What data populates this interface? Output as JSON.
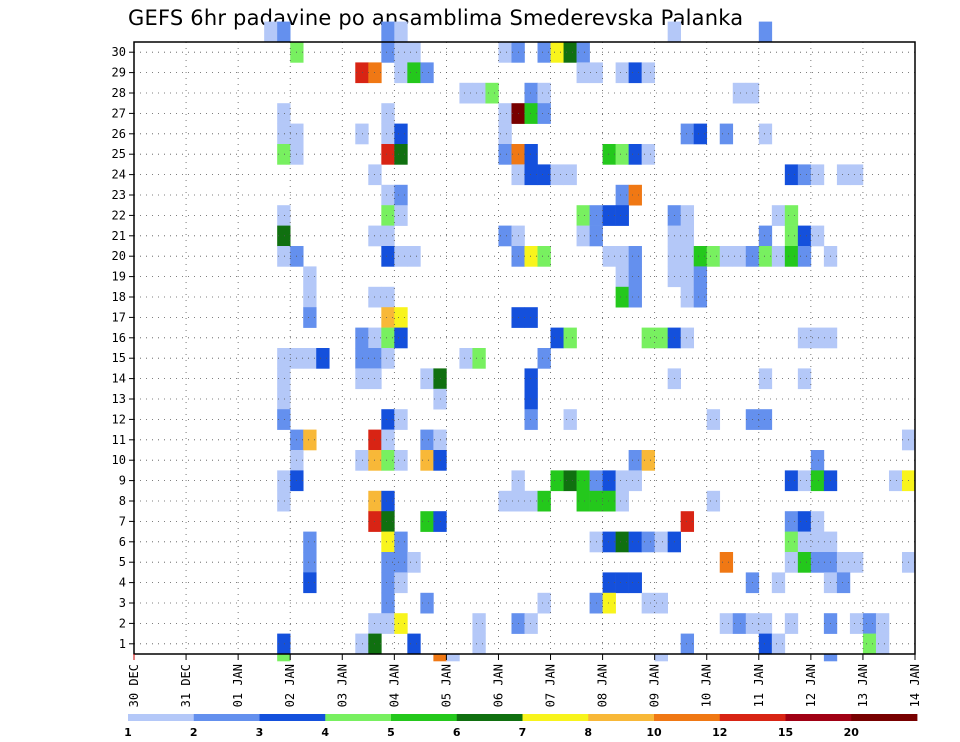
{
  "chart_data": {
    "type": "heatmap",
    "title": "GEFS 6hr padavine po ansamblima Smederevska Palanka",
    "x_labels": [
      "30 DEC",
      "31 DEC",
      "01 JAN",
      "02 JAN",
      "03 JAN",
      "04 JAN",
      "05 JAN",
      "06 JAN",
      "07 JAN",
      "08 JAN",
      "09 JAN",
      "10 JAN",
      "11 JAN",
      "12 JAN",
      "13 JAN",
      "14 JAN"
    ],
    "x_range": [
      0,
      60
    ],
    "x_unit": "6h steps from 30 DEC 00Z",
    "y_labels": [
      "1",
      "2",
      "3",
      "4",
      "5",
      "6",
      "7",
      "8",
      "9",
      "10",
      "11",
      "12",
      "13",
      "14",
      "15",
      "16",
      "17",
      "18",
      "19",
      "20",
      "21",
      "22",
      "23",
      "24",
      "25",
      "26",
      "27",
      "28",
      "29",
      "30"
    ],
    "y_range": [
      0,
      30
    ],
    "grid": true,
    "legend": {
      "placement": "bottom",
      "levels": [
        "1",
        "2",
        "3",
        "4",
        "5",
        "6",
        "7",
        "8",
        "10",
        "12",
        "15",
        "20"
      ],
      "colors": [
        "#b4c8f8",
        "#6490ee",
        "#1450dc",
        "#78f060",
        "#24c81c",
        "#107010",
        "#f8f41c",
        "#f8b838",
        "#f07814",
        "#d82414",
        "#a00014",
        "#780000"
      ]
    },
    "cells": [
      [
        10,
        30,
        0
      ],
      [
        11,
        30,
        1
      ],
      [
        19,
        30,
        1
      ],
      [
        20,
        30,
        0
      ],
      [
        41,
        30,
        0
      ],
      [
        48,
        30,
        1
      ],
      [
        12,
        29,
        3
      ],
      [
        19,
        29,
        1
      ],
      [
        20,
        29,
        0
      ],
      [
        21,
        29,
        0
      ],
      [
        28,
        29,
        0
      ],
      [
        29,
        29,
        1
      ],
      [
        31,
        29,
        1
      ],
      [
        32,
        29,
        6
      ],
      [
        33,
        29,
        5
      ],
      [
        34,
        29,
        1
      ],
      [
        17,
        28,
        9
      ],
      [
        18,
        28,
        8
      ],
      [
        20,
        28,
        0
      ],
      [
        21,
        28,
        4
      ],
      [
        22,
        28,
        1
      ],
      [
        34,
        28,
        0
      ],
      [
        35,
        28,
        0
      ],
      [
        37,
        28,
        0
      ],
      [
        38,
        28,
        2
      ],
      [
        39,
        28,
        0
      ],
      [
        25,
        27,
        0
      ],
      [
        26,
        27,
        0
      ],
      [
        27,
        27,
        3
      ],
      [
        30,
        27,
        1
      ],
      [
        31,
        27,
        0
      ],
      [
        46,
        27,
        0
      ],
      [
        47,
        27,
        0
      ],
      [
        11,
        26,
        0
      ],
      [
        19,
        26,
        0
      ],
      [
        28,
        26,
        0
      ],
      [
        29,
        26,
        11
      ],
      [
        30,
        26,
        4
      ],
      [
        31,
        26,
        1
      ],
      [
        11,
        25,
        0
      ],
      [
        12,
        25,
        0
      ],
      [
        17,
        25,
        0
      ],
      [
        19,
        25,
        0
      ],
      [
        20,
        25,
        2
      ],
      [
        28,
        25,
        0
      ],
      [
        42,
        25,
        1
      ],
      [
        43,
        25,
        2
      ],
      [
        45,
        25,
        1
      ],
      [
        48,
        25,
        0
      ],
      [
        11,
        24,
        3
      ],
      [
        12,
        24,
        0
      ],
      [
        19,
        24,
        9
      ],
      [
        20,
        24,
        5
      ],
      [
        28,
        24,
        1
      ],
      [
        29,
        24,
        8
      ],
      [
        30,
        24,
        2
      ],
      [
        36,
        24,
        4
      ],
      [
        37,
        24,
        3
      ],
      [
        38,
        24,
        2
      ],
      [
        39,
        24,
        0
      ],
      [
        18,
        23,
        0
      ],
      [
        29,
        23,
        0
      ],
      [
        30,
        23,
        2
      ],
      [
        31,
        23,
        2
      ],
      [
        32,
        23,
        0
      ],
      [
        33,
        23,
        0
      ],
      [
        50,
        23,
        2
      ],
      [
        51,
        23,
        1
      ],
      [
        52,
        23,
        0
      ],
      [
        54,
        23,
        0
      ],
      [
        55,
        23,
        0
      ],
      [
        19,
        22,
        0
      ],
      [
        20,
        22,
        1
      ],
      [
        37,
        22,
        1
      ],
      [
        38,
        22,
        8
      ],
      [
        11,
        21,
        0
      ],
      [
        19,
        21,
        3
      ],
      [
        20,
        21,
        0
      ],
      [
        34,
        21,
        3
      ],
      [
        35,
        21,
        1
      ],
      [
        36,
        21,
        2
      ],
      [
        37,
        21,
        2
      ],
      [
        41,
        21,
        1
      ],
      [
        42,
        21,
        0
      ],
      [
        49,
        21,
        0
      ],
      [
        50,
        21,
        3
      ],
      [
        11,
        20,
        5
      ],
      [
        18,
        20,
        0
      ],
      [
        19,
        20,
        0
      ],
      [
        28,
        20,
        1
      ],
      [
        29,
        20,
        0
      ],
      [
        34,
        20,
        0
      ],
      [
        35,
        20,
        1
      ],
      [
        41,
        20,
        0
      ],
      [
        42,
        20,
        0
      ],
      [
        48,
        20,
        1
      ],
      [
        50,
        20,
        3
      ],
      [
        51,
        20,
        2
      ],
      [
        52,
        20,
        0
      ],
      [
        11,
        19,
        0
      ],
      [
        12,
        19,
        1
      ],
      [
        19,
        19,
        2
      ],
      [
        20,
        19,
        0
      ],
      [
        21,
        19,
        0
      ],
      [
        29,
        19,
        1
      ],
      [
        30,
        19,
        6
      ],
      [
        31,
        19,
        3
      ],
      [
        36,
        19,
        0
      ],
      [
        37,
        19,
        0
      ],
      [
        38,
        19,
        1
      ],
      [
        41,
        19,
        0
      ],
      [
        42,
        19,
        0
      ],
      [
        43,
        19,
        4
      ],
      [
        44,
        19,
        3
      ],
      [
        45,
        19,
        0
      ],
      [
        46,
        19,
        0
      ],
      [
        47,
        19,
        1
      ],
      [
        48,
        19,
        3
      ],
      [
        49,
        19,
        0
      ],
      [
        50,
        19,
        4
      ],
      [
        51,
        19,
        1
      ],
      [
        53,
        19,
        0
      ],
      [
        13,
        18,
        0
      ],
      [
        37,
        18,
        0
      ],
      [
        38,
        18,
        1
      ],
      [
        41,
        18,
        0
      ],
      [
        42,
        18,
        0
      ],
      [
        43,
        18,
        1
      ],
      [
        13,
        17,
        0
      ],
      [
        18,
        17,
        0
      ],
      [
        19,
        17,
        0
      ],
      [
        37,
        17,
        4
      ],
      [
        38,
        17,
        1
      ],
      [
        42,
        17,
        0
      ],
      [
        43,
        17,
        1
      ],
      [
        13,
        16,
        1
      ],
      [
        19,
        16,
        7
      ],
      [
        20,
        16,
        6
      ],
      [
        29,
        16,
        2
      ],
      [
        30,
        16,
        2
      ],
      [
        17,
        15,
        1
      ],
      [
        18,
        15,
        0
      ],
      [
        19,
        15,
        3
      ],
      [
        20,
        15,
        2
      ],
      [
        32,
        15,
        2
      ],
      [
        33,
        15,
        3
      ],
      [
        39,
        15,
        3
      ],
      [
        40,
        15,
        3
      ],
      [
        41,
        15,
        2
      ],
      [
        42,
        15,
        0
      ],
      [
        51,
        15,
        0
      ],
      [
        52,
        15,
        0
      ],
      [
        53,
        15,
        0
      ],
      [
        11,
        14,
        0
      ],
      [
        12,
        14,
        0
      ],
      [
        13,
        14,
        0
      ],
      [
        14,
        14,
        2
      ],
      [
        17,
        14,
        1
      ],
      [
        18,
        14,
        1
      ],
      [
        19,
        14,
        0
      ],
      [
        25,
        14,
        0
      ],
      [
        26,
        14,
        3
      ],
      [
        31,
        14,
        1
      ],
      [
        11,
        13,
        0
      ],
      [
        17,
        13,
        0
      ],
      [
        18,
        13,
        0
      ],
      [
        22,
        13,
        0
      ],
      [
        23,
        13,
        5
      ],
      [
        30,
        13,
        2
      ],
      [
        41,
        13,
        0
      ],
      [
        48,
        13,
        0
      ],
      [
        51,
        13,
        0
      ],
      [
        11,
        12,
        0
      ],
      [
        23,
        12,
        0
      ],
      [
        30,
        12,
        2
      ],
      [
        11,
        11,
        1
      ],
      [
        19,
        11,
        2
      ],
      [
        20,
        11,
        0
      ],
      [
        30,
        11,
        1
      ],
      [
        33,
        11,
        0
      ],
      [
        44,
        11,
        0
      ],
      [
        47,
        11,
        1
      ],
      [
        48,
        11,
        1
      ],
      [
        12,
        10,
        1
      ],
      [
        13,
        10,
        7
      ],
      [
        18,
        10,
        9
      ],
      [
        19,
        10,
        0
      ],
      [
        22,
        10,
        1
      ],
      [
        23,
        10,
        0
      ],
      [
        59,
        10,
        0
      ],
      [
        12,
        9,
        0
      ],
      [
        17,
        9,
        0
      ],
      [
        18,
        9,
        7
      ],
      [
        19,
        9,
        3
      ],
      [
        20,
        9,
        0
      ],
      [
        22,
        9,
        7
      ],
      [
        23,
        9,
        2
      ],
      [
        38,
        9,
        1
      ],
      [
        39,
        9,
        7
      ],
      [
        52,
        9,
        1
      ],
      [
        11,
        8,
        0
      ],
      [
        12,
        8,
        2
      ],
      [
        29,
        8,
        0
      ],
      [
        32,
        8,
        4
      ],
      [
        33,
        8,
        5
      ],
      [
        34,
        8,
        4
      ],
      [
        35,
        8,
        1
      ],
      [
        36,
        8,
        2
      ],
      [
        37,
        8,
        0
      ],
      [
        38,
        8,
        0
      ],
      [
        50,
        8,
        2
      ],
      [
        51,
        8,
        0
      ],
      [
        52,
        8,
        4
      ],
      [
        53,
        8,
        2
      ],
      [
        58,
        8,
        0
      ],
      [
        59,
        8,
        6
      ],
      [
        11,
        7,
        0
      ],
      [
        18,
        7,
        7
      ],
      [
        19,
        7,
        2
      ],
      [
        28,
        7,
        0
      ],
      [
        29,
        7,
        0
      ],
      [
        30,
        7,
        0
      ],
      [
        31,
        7,
        4
      ],
      [
        34,
        7,
        4
      ],
      [
        35,
        7,
        4
      ],
      [
        36,
        7,
        4
      ],
      [
        37,
        7,
        0
      ],
      [
        44,
        7,
        0
      ],
      [
        18,
        6,
        9
      ],
      [
        19,
        6,
        5
      ],
      [
        22,
        6,
        4
      ],
      [
        23,
        6,
        2
      ],
      [
        42,
        6,
        9
      ],
      [
        50,
        6,
        1
      ],
      [
        51,
        6,
        2
      ],
      [
        52,
        6,
        0
      ],
      [
        13,
        5,
        1
      ],
      [
        19,
        5,
        6
      ],
      [
        20,
        5,
        1
      ],
      [
        35,
        5,
        0
      ],
      [
        36,
        5,
        2
      ],
      [
        37,
        5,
        5
      ],
      [
        38,
        5,
        2
      ],
      [
        39,
        5,
        1
      ],
      [
        40,
        5,
        0
      ],
      [
        41,
        5,
        2
      ],
      [
        50,
        5,
        3
      ],
      [
        51,
        5,
        0
      ],
      [
        52,
        5,
        0
      ],
      [
        53,
        5,
        0
      ],
      [
        13,
        4,
        1
      ],
      [
        19,
        4,
        1
      ],
      [
        20,
        4,
        1
      ],
      [
        21,
        4,
        0
      ],
      [
        45,
        4,
        8
      ],
      [
        50,
        4,
        0
      ],
      [
        51,
        4,
        4
      ],
      [
        52,
        4,
        1
      ],
      [
        53,
        4,
        1
      ],
      [
        54,
        4,
        0
      ],
      [
        55,
        4,
        0
      ],
      [
        59,
        4,
        0
      ],
      [
        13,
        3,
        2
      ],
      [
        19,
        3,
        1
      ],
      [
        20,
        3,
        0
      ],
      [
        36,
        3,
        2
      ],
      [
        37,
        3,
        2
      ],
      [
        38,
        3,
        2
      ],
      [
        47,
        3,
        1
      ],
      [
        49,
        3,
        0
      ],
      [
        53,
        3,
        0
      ],
      [
        54,
        3,
        1
      ],
      [
        19,
        2,
        1
      ],
      [
        22,
        2,
        1
      ],
      [
        31,
        2,
        0
      ],
      [
        35,
        2,
        1
      ],
      [
        36,
        2,
        6
      ],
      [
        39,
        2,
        0
      ],
      [
        40,
        2,
        0
      ],
      [
        18,
        1,
        0
      ],
      [
        19,
        1,
        0
      ],
      [
        20,
        1,
        6
      ],
      [
        26,
        1,
        0
      ],
      [
        29,
        1,
        1
      ],
      [
        30,
        1,
        0
      ],
      [
        45,
        1,
        0
      ],
      [
        46,
        1,
        1
      ],
      [
        47,
        1,
        0
      ],
      [
        48,
        1,
        0
      ],
      [
        50,
        1,
        0
      ],
      [
        53,
        1,
        1
      ],
      [
        55,
        1,
        0
      ],
      [
        56,
        1,
        1
      ],
      [
        57,
        1,
        0
      ],
      [
        11,
        0,
        2
      ],
      [
        17,
        0,
        0
      ],
      [
        18,
        0,
        5
      ],
      [
        21,
        0,
        2
      ],
      [
        26,
        0,
        0
      ],
      [
        42,
        0,
        1
      ],
      [
        48,
        0,
        2
      ],
      [
        49,
        0,
        0
      ],
      [
        56,
        0,
        3
      ],
      [
        57,
        0,
        0
      ],
      [
        11,
        -1,
        3
      ],
      [
        23,
        -1,
        8
      ],
      [
        24,
        -1,
        0
      ],
      [
        40,
        -1,
        0
      ],
      [
        53,
        -1,
        1
      ]
    ]
  }
}
